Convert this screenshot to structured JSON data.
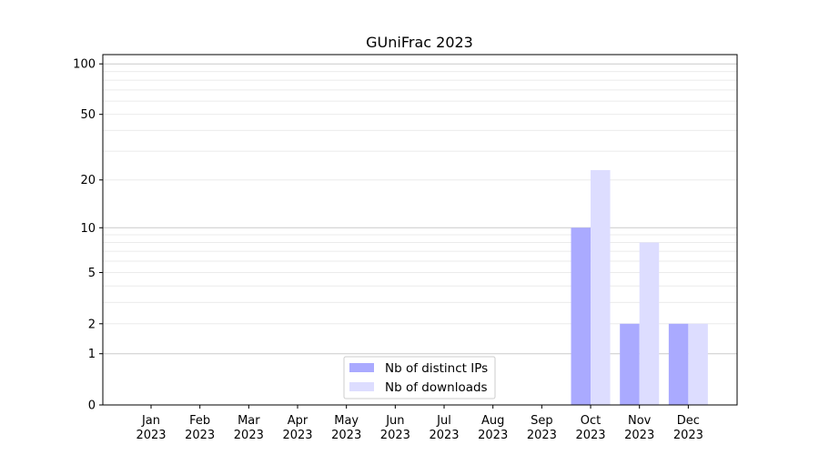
{
  "chart_data": {
    "type": "bar",
    "title": "GUniFrac 2023",
    "xlabel": "",
    "ylabel": "",
    "yscale": "symlog (log10(1+y))",
    "ylim": [
      0,
      113
    ],
    "yticks": [
      0,
      1,
      2,
      5,
      10,
      20,
      50,
      100
    ],
    "grid": true,
    "legend_position": "bottom-center",
    "categories": [
      [
        "Jan",
        "2023"
      ],
      [
        "Feb",
        "2023"
      ],
      [
        "Mar",
        "2023"
      ],
      [
        "Apr",
        "2023"
      ],
      [
        "May",
        "2023"
      ],
      [
        "Jun",
        "2023"
      ],
      [
        "Jul",
        "2023"
      ],
      [
        "Aug",
        "2023"
      ],
      [
        "Sep",
        "2023"
      ],
      [
        "Oct",
        "2023"
      ],
      [
        "Nov",
        "2023"
      ],
      [
        "Dec",
        "2023"
      ]
    ],
    "series": [
      {
        "name": "Nb of distinct IPs",
        "color": "#aaaaff",
        "values": [
          0,
          0,
          0,
          0,
          0,
          0,
          0,
          0,
          0,
          10,
          2,
          2
        ]
      },
      {
        "name": "Nb of downloads",
        "color": "#ddddff",
        "values": [
          0,
          0,
          0,
          0,
          0,
          0,
          0,
          0,
          0,
          23,
          8,
          2
        ]
      }
    ]
  }
}
